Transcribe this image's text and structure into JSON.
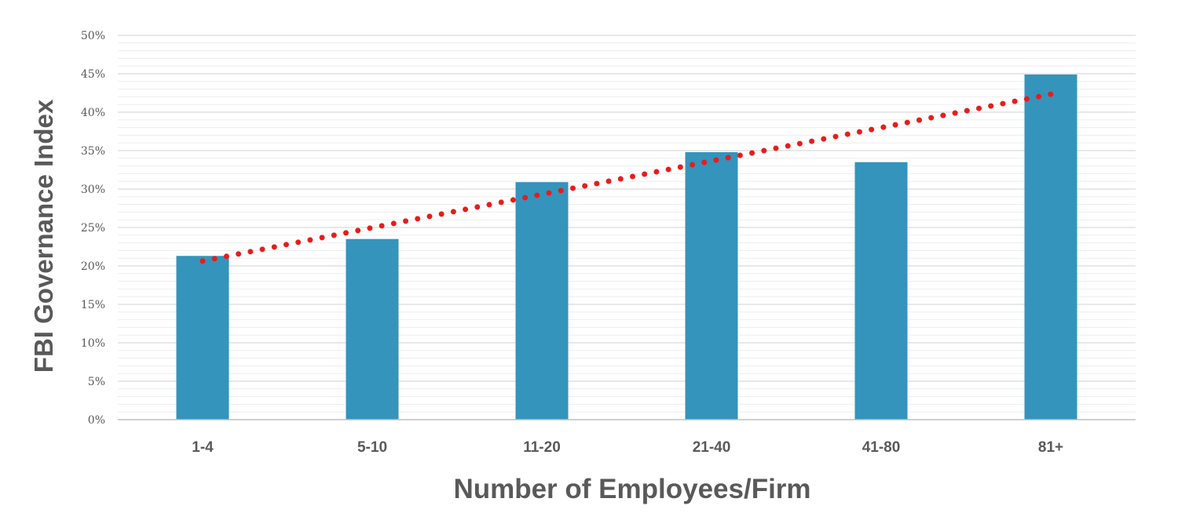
{
  "chart_data": {
    "type": "bar",
    "title": "",
    "xlabel": "Number of Employees/Firm",
    "ylabel": "FBI Governance Index",
    "categories": [
      "1-4",
      "5-10",
      "11-20",
      "21-40",
      "41-80",
      "81+"
    ],
    "values": [
      21.3,
      23.5,
      30.9,
      34.8,
      33.5,
      44.9
    ],
    "ylim": [
      0,
      50
    ],
    "yticks": [
      "0%",
      "5%",
      "10%",
      "15%",
      "20%",
      "25%",
      "30%",
      "35%",
      "40%",
      "45%",
      "50%"
    ],
    "ytick_values": [
      0,
      5,
      10,
      15,
      20,
      25,
      30,
      35,
      40,
      45,
      50
    ],
    "minor_gridlines_step": 1,
    "grid": true,
    "legend": "none",
    "trendline": {
      "type": "linear",
      "style": "dotted"
    },
    "colors": {
      "bar": "#3494bb",
      "trendline": "#e81c1c",
      "grid_major": "#d9d9d9",
      "grid_minor": "#ededed",
      "text": "#595959"
    }
  }
}
